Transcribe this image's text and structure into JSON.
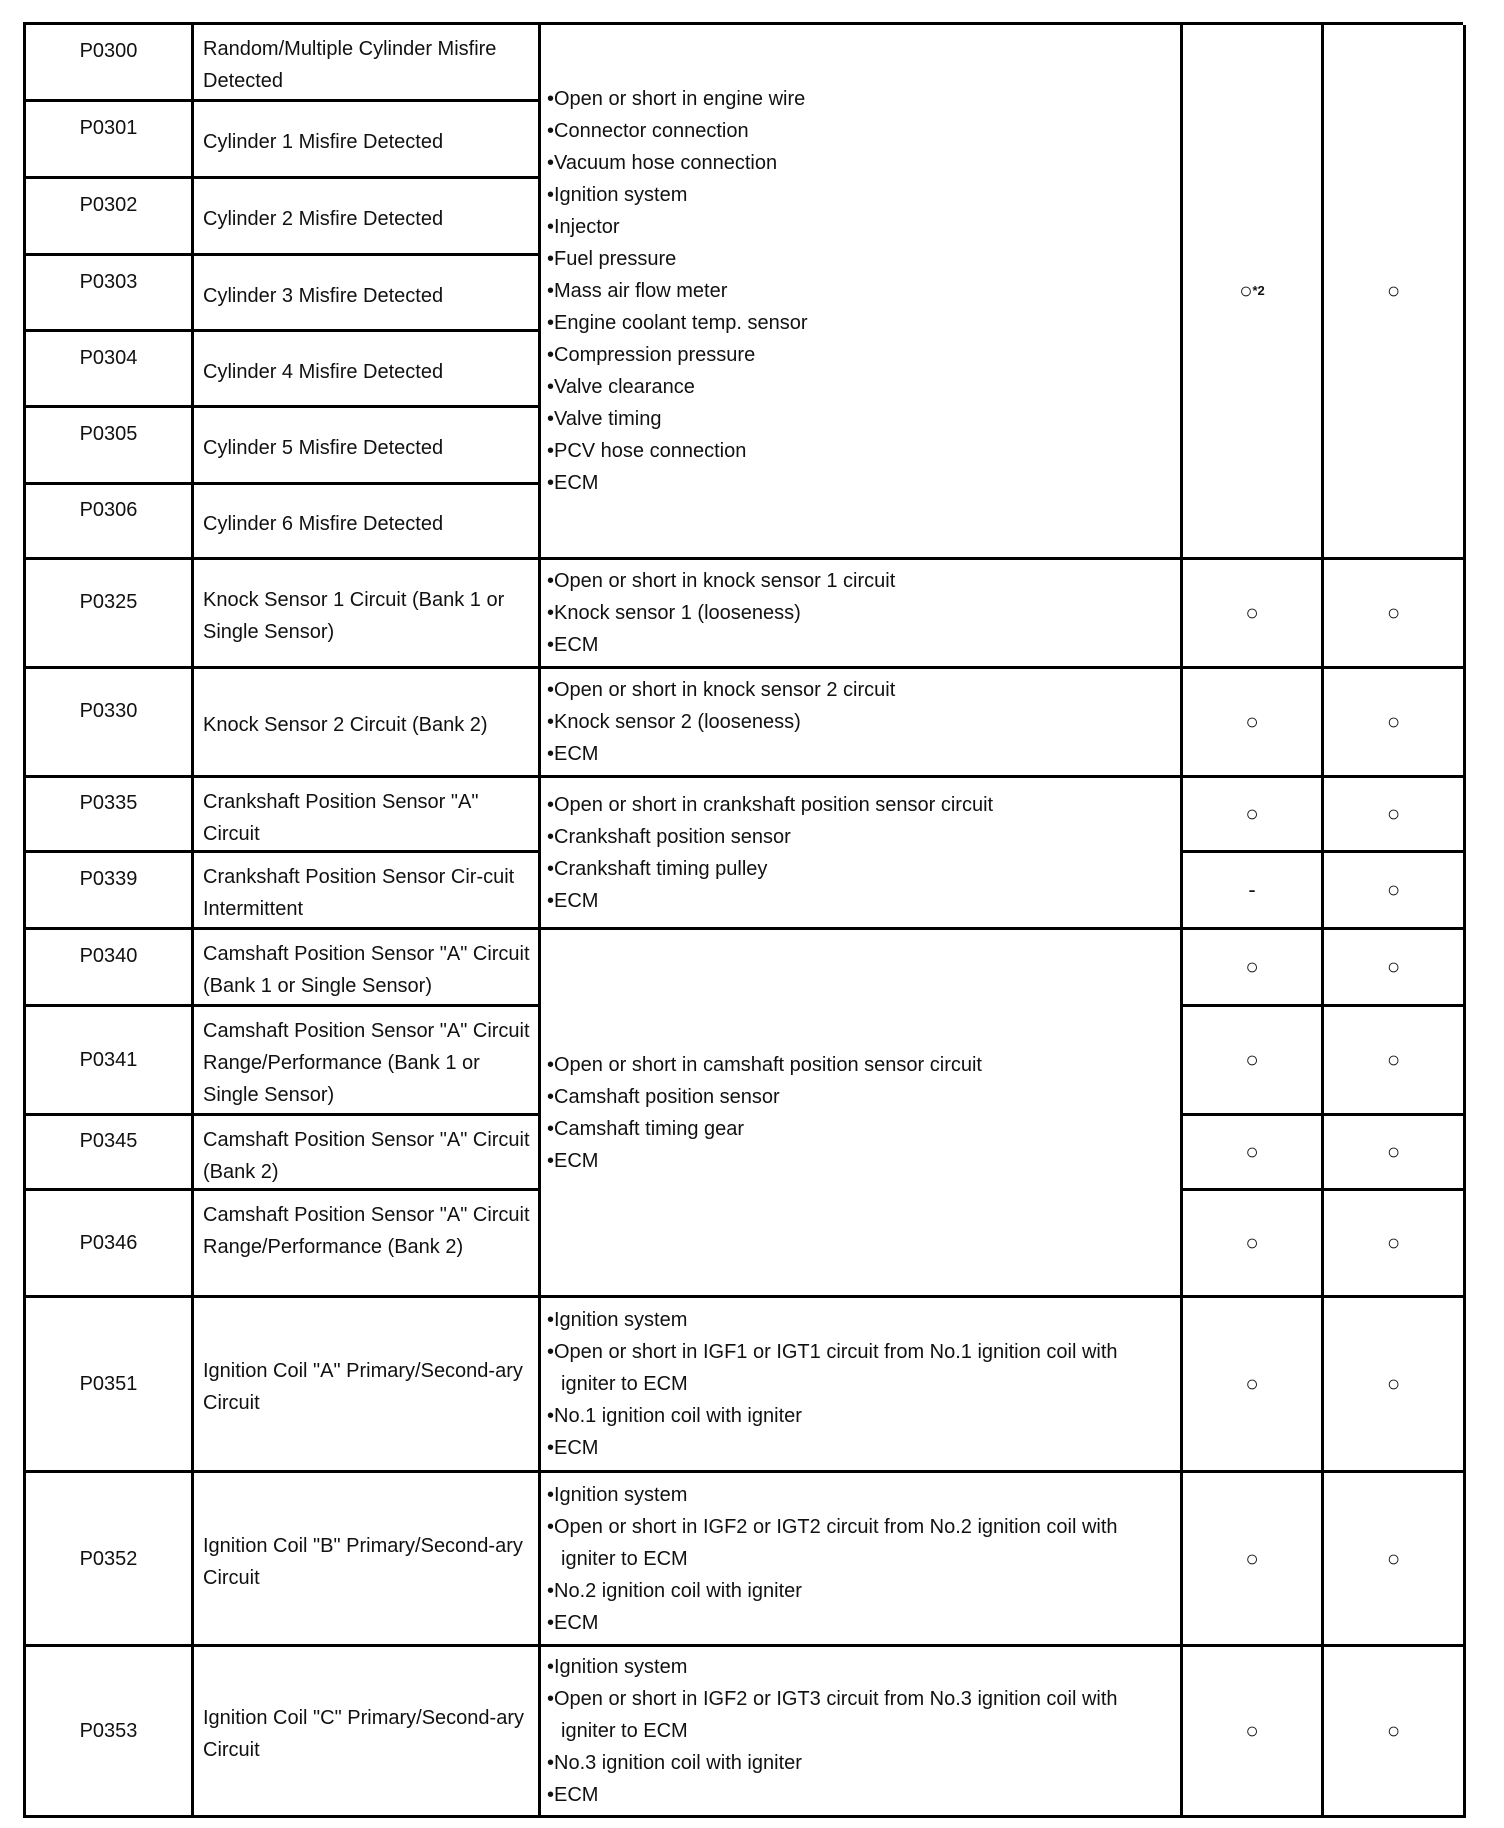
{
  "rows": [
    {
      "code": "P0300",
      "desc": "Random/Multiple Cylinder Misfire Detected"
    },
    {
      "code": "P0301",
      "desc": "Cylinder 1 Misfire Detected"
    },
    {
      "code": "P0302",
      "desc": "Cylinder 2 Misfire Detected"
    },
    {
      "code": "P0303",
      "desc": "Cylinder 3 Misfire Detected"
    },
    {
      "code": "P0304",
      "desc": "Cylinder 4 Misfire Detected"
    },
    {
      "code": "P0305",
      "desc": "Cylinder 5 Misfire Detected"
    },
    {
      "code": "P0306",
      "desc": "Cylinder 6 Misfire Detected"
    },
    {
      "code": "P0325",
      "desc": "Knock Sensor 1 Circuit (Bank 1 or Single Sensor)"
    },
    {
      "code": "P0330",
      "desc": "Knock Sensor 2 Circuit (Bank 2)"
    },
    {
      "code": "P0335",
      "desc": "Crankshaft Position Sensor \"A\" Circuit"
    },
    {
      "code": "P0339",
      "desc": "Crankshaft Position Sensor Cir-cuit Intermittent"
    },
    {
      "code": "P0340",
      "desc": "Camshaft Position Sensor \"A\" Circuit (Bank 1 or Single Sensor)"
    },
    {
      "code": "P0341",
      "desc": "Camshaft Position Sensor \"A\" Circuit Range/Performance (Bank 1 or Single Sensor)"
    },
    {
      "code": "P0345",
      "desc": "Camshaft Position Sensor \"A\" Circuit (Bank 2)"
    },
    {
      "code": "P0346",
      "desc": "Camshaft Position Sensor \"A\" Circuit Range/Performance (Bank 2)"
    },
    {
      "code": "P0351",
      "desc": "Ignition Coil \"A\" Primary/Second-ary Circuit"
    },
    {
      "code": "P0352",
      "desc": "Ignition Coil \"B\" Primary/Second-ary Circuit"
    },
    {
      "code": "P0353",
      "desc": "Ignition Coil \"C\" Primary/Second-ary Circuit"
    }
  ],
  "cause_groups": [
    {
      "rows": [
        1,
        7
      ],
      "items": [
        "•Open or short in engine wire",
        "•Connector connection",
        "•Vacuum hose connection",
        "•Ignition system",
        "•Injector",
        "•Fuel pressure",
        "•Mass air flow meter",
        "•Engine coolant temp. sensor",
        "•Compression pressure",
        "•Valve clearance",
        "•Valve timing",
        "•PCV hose connection",
        "•ECM"
      ]
    },
    {
      "rows": [
        8,
        8
      ],
      "items": [
        "•Open or short in knock sensor 1 circuit",
        "•Knock sensor 1 (looseness)",
        "•ECM"
      ]
    },
    {
      "rows": [
        9,
        9
      ],
      "items": [
        "•Open or short in knock sensor 2 circuit",
        "•Knock sensor 2 (looseness)",
        "•ECM"
      ]
    },
    {
      "rows": [
        10,
        11
      ],
      "items": [
        "•Open or short in crankshaft position sensor circuit",
        "•Crankshaft position sensor",
        "•Crankshaft timing pulley",
        "•ECM"
      ]
    },
    {
      "rows": [
        12,
        15
      ],
      "items": [
        "•Open or short in camshaft position sensor circuit",
        "•Camshaft position sensor",
        "•Camshaft timing gear",
        "•ECM"
      ]
    },
    {
      "rows": [
        16,
        16
      ],
      "items": [
        "•Ignition system",
        "•Open or short in IGF1 or IGT1 circuit from No.1 ignition coil with igniter to ECM",
        "•No.1 ignition coil with igniter",
        "•ECM"
      ]
    },
    {
      "rows": [
        17,
        17
      ],
      "items": [
        "•Ignition system",
        "•Open or short in IGF2 or IGT2 circuit from No.2 ignition coil with igniter to ECM",
        "•No.2 ignition coil with igniter",
        "•ECM"
      ]
    },
    {
      "rows": [
        18,
        18
      ],
      "items": [
        "•Ignition system",
        "•Open or short in IGF2 or IGT3 circuit from No.3 ignition coil with igniter to ECM",
        "•No.3 ignition coil with igniter",
        "•ECM"
      ]
    }
  ],
  "marks": [
    {
      "rows": [
        1,
        7
      ],
      "col4": "○",
      "col4_note": "*2",
      "col5": "○"
    },
    {
      "rows": [
        8,
        8
      ],
      "col4": "○",
      "col5": "○"
    },
    {
      "rows": [
        9,
        9
      ],
      "col4": "○",
      "col5": "○"
    },
    {
      "rows": [
        10,
        10
      ],
      "col4": "○",
      "col5": "○"
    },
    {
      "rows": [
        11,
        11
      ],
      "col4": "-",
      "col5": "○"
    },
    {
      "rows": [
        12,
        12
      ],
      "col4": "○",
      "col5": "○"
    },
    {
      "rows": [
        13,
        13
      ],
      "col4": "○",
      "col5": "○"
    },
    {
      "rows": [
        14,
        14
      ],
      "col4": "○",
      "col5": "○"
    },
    {
      "rows": [
        15,
        15
      ],
      "col4": "○",
      "col5": "○"
    },
    {
      "rows": [
        16,
        16
      ],
      "col4": "○",
      "col5": "○"
    },
    {
      "rows": [
        17,
        17
      ],
      "col4": "○",
      "col5": "○"
    },
    {
      "rows": [
        18,
        18
      ],
      "col4": "○",
      "col5": "○"
    }
  ]
}
